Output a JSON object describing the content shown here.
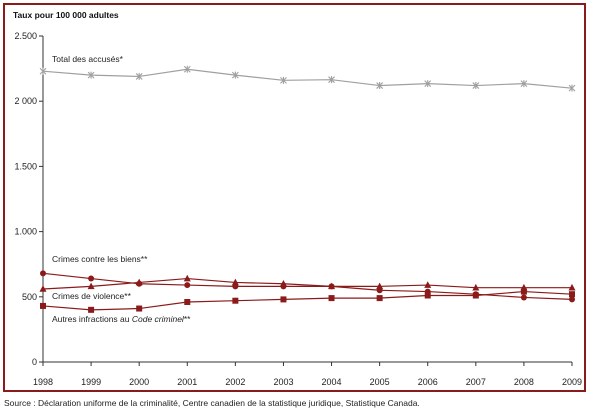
{
  "chart_data": {
    "type": "line",
    "y_title": "Taux pour 100 000 adultes",
    "x": [
      "1998",
      "1999",
      "2000",
      "2001",
      "2002",
      "2003",
      "2004",
      "2005",
      "2006",
      "2007",
      "2008",
      "2009"
    ],
    "ylim": [
      0,
      2500
    ],
    "yticks": [
      0,
      500,
      1000,
      1500,
      2000,
      2500
    ],
    "ytick_labels": [
      "0",
      "500",
      "1.000",
      "1.500",
      "2 000",
      "2.500"
    ],
    "grid": false,
    "series": [
      {
        "name": "Total des accusés*",
        "marker": "x",
        "color": "#a0a0a0",
        "values": [
          2230,
          2200,
          2190,
          2245,
          2200,
          2160,
          2165,
          2120,
          2135,
          2120,
          2135,
          2100
        ]
      },
      {
        "name": "Crimes contre les biens**",
        "marker": "circle",
        "color": "#8B1A1A",
        "values": [
          680,
          640,
          600,
          590,
          580,
          580,
          580,
          550,
          540,
          520,
          495,
          480
        ]
      },
      {
        "name": "Crimes de violence**",
        "marker": "triangle",
        "color": "#8B1A1A",
        "values": [
          560,
          580,
          610,
          640,
          610,
          600,
          580,
          580,
          590,
          570,
          570,
          570
        ]
      },
      {
        "name": "Autres infractions au Code criminel**",
        "marker": "square",
        "color": "#8B1A1A",
        "values": [
          430,
          400,
          410,
          460,
          470,
          480,
          490,
          490,
          510,
          510,
          540,
          520
        ]
      }
    ],
    "label_prefix_other": "Autres infractions au ",
    "label_italic_other": "Code criminel",
    "label_suffix_other": "**"
  },
  "source": "Source : Déclaration uniforme de la criminalité, Centre canadien de la statistique juridique, Statistique Canada.",
  "colors": {
    "frame": "#8B1A1A",
    "accent": "#8B1A1A",
    "total": "#a0a0a0"
  }
}
